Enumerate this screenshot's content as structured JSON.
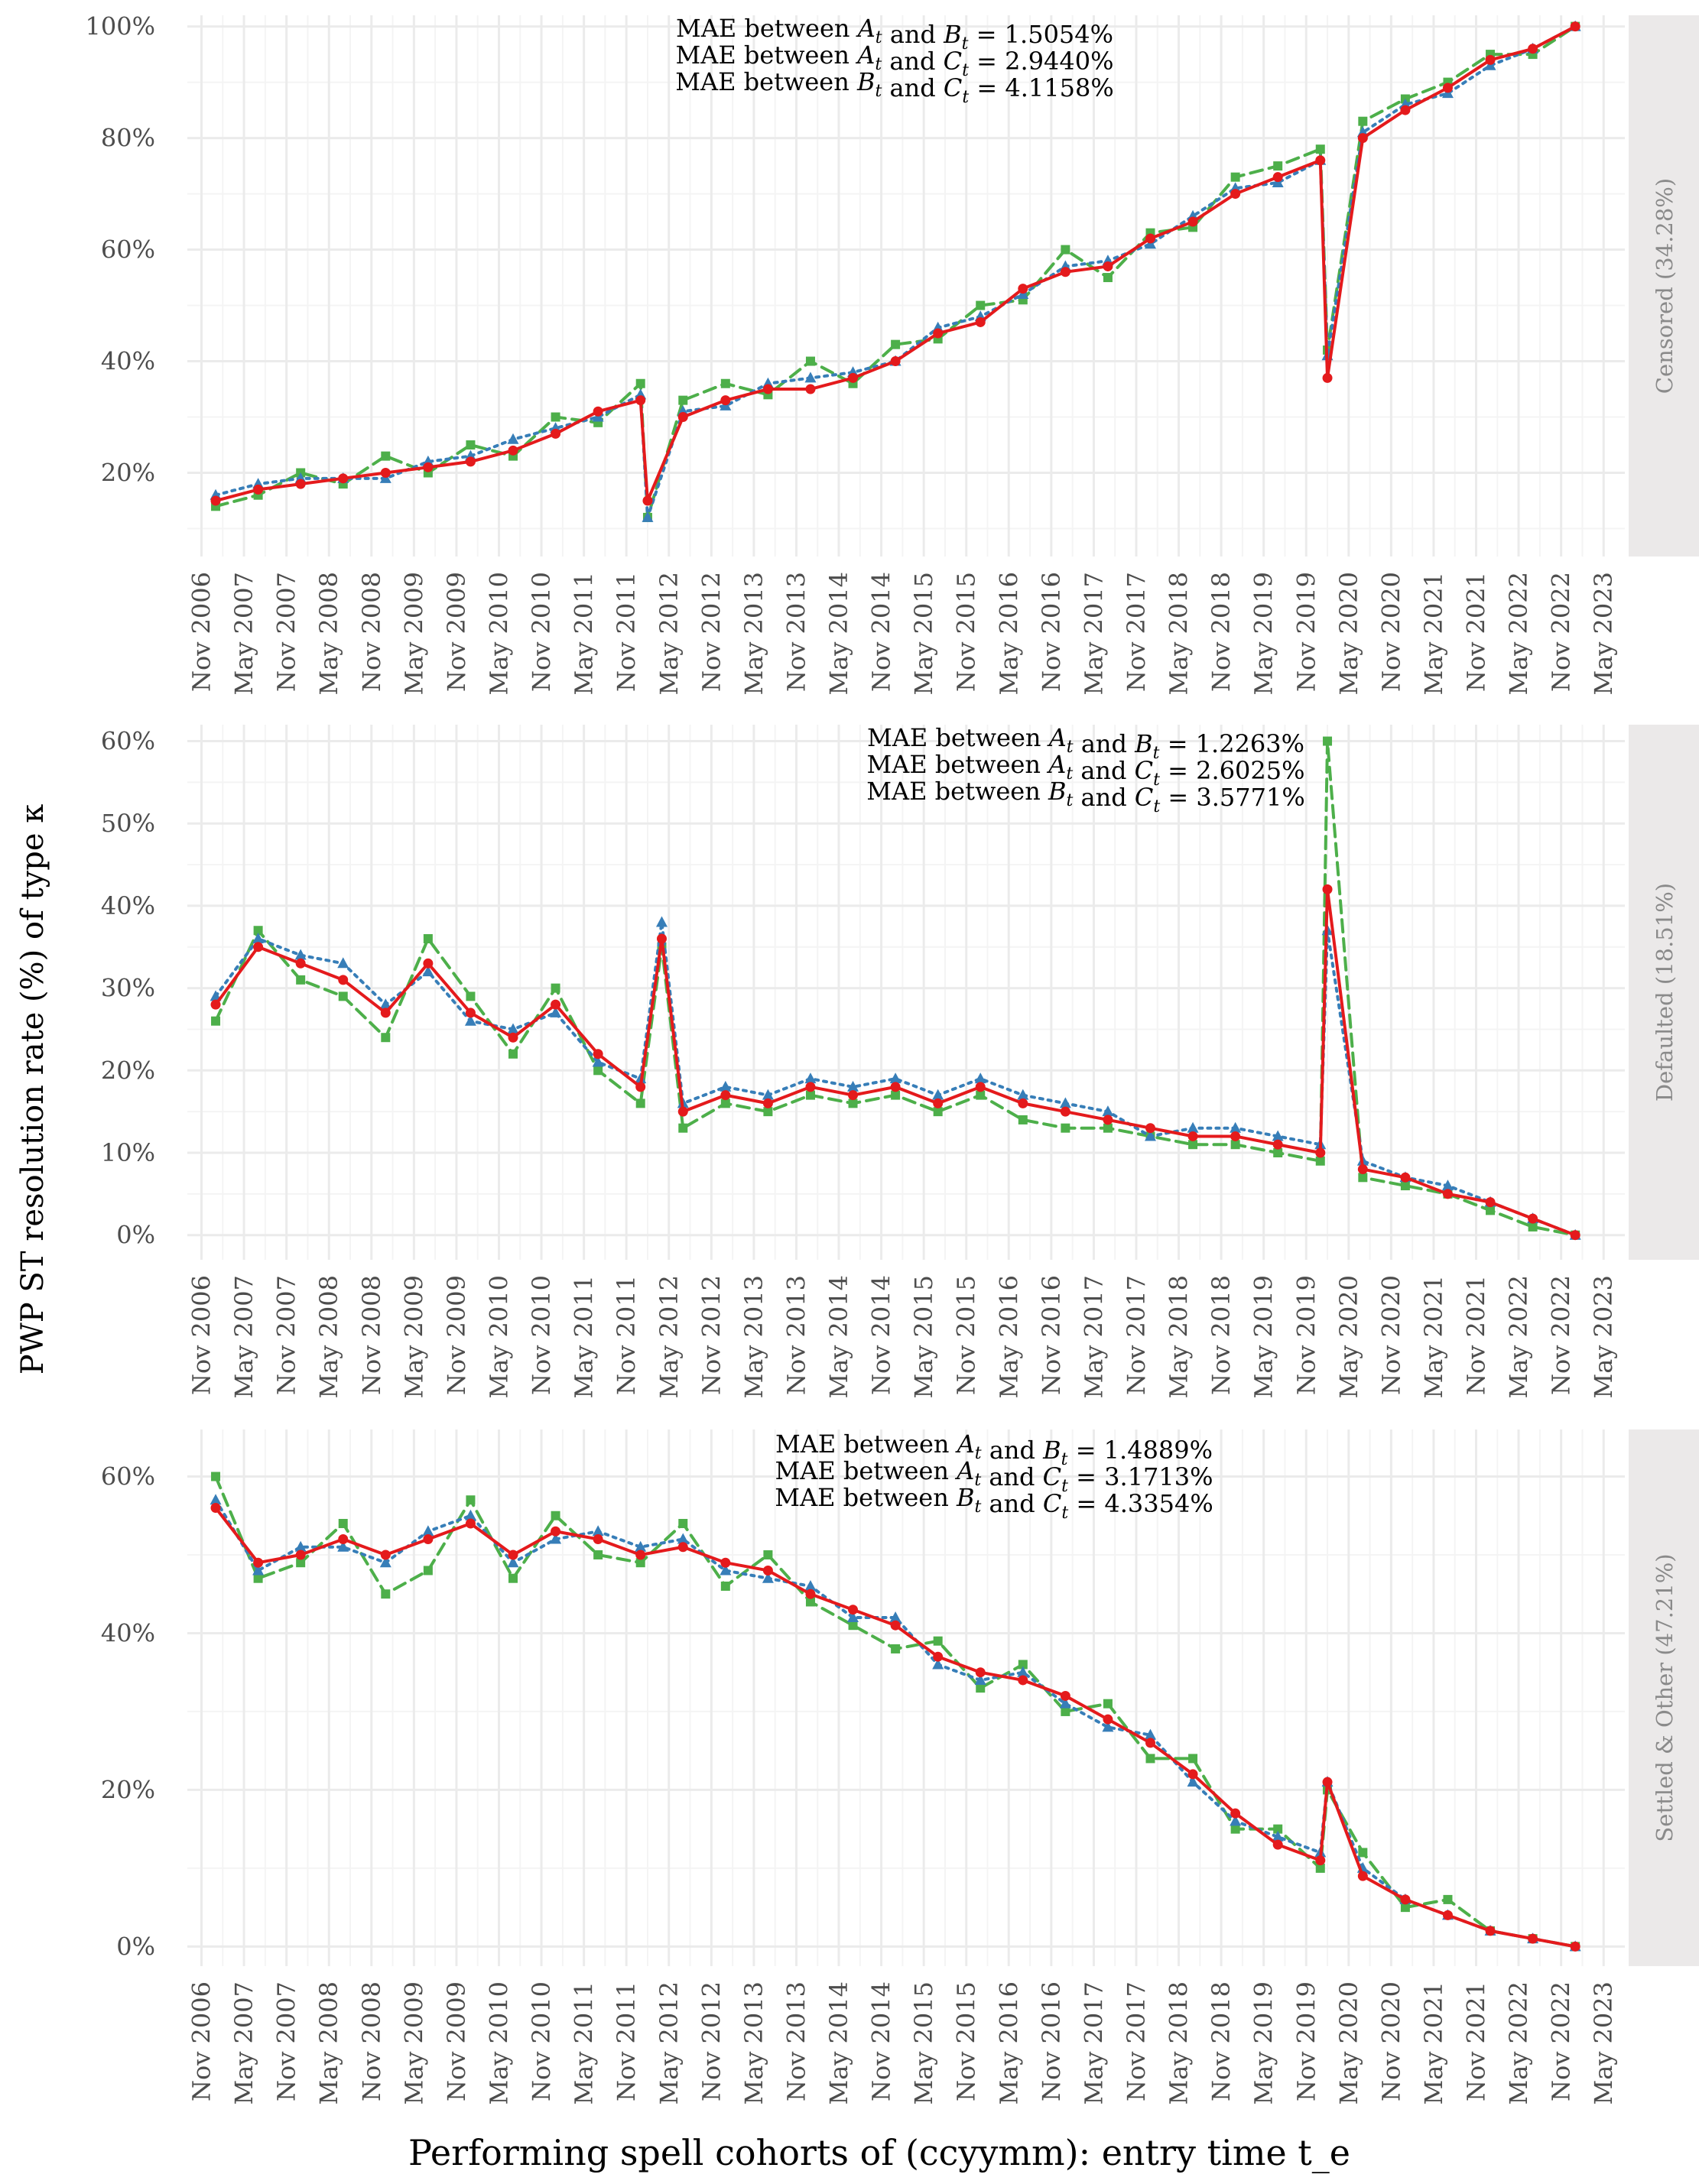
{
  "figure": {
    "ylabel": "PWP ST resolution rate (%) of type κ",
    "xlabel": "Performing spell cohorts of (ccyymm): entry time t_e",
    "colors": {
      "A": "#E41A1C",
      "B": "#377EB8",
      "C": "#4DAF4A",
      "strip_bg": "#EBE9E9",
      "grid_major": "#EBEBEB",
      "grid_minor": "#F4F4F4",
      "text": "#4D4D4D"
    }
  },
  "chart_data": [
    {
      "type": "line",
      "facet": "Censored (34.28%)",
      "ylim": [
        5,
        102
      ],
      "yticks": [
        20,
        40,
        60,
        80,
        100
      ],
      "yticklabels": [
        "20%",
        "40%",
        "60%",
        "80%",
        "100%"
      ],
      "mae": [
        "MAE between A_t and B_t = 1.5054%",
        "MAE between A_t and C_t = 2.9440%",
        "MAE between B_t and C_t = 4.1158%"
      ],
      "series": [
        {
          "key": "A",
          "marker": "circle",
          "dash": "solid",
          "x": [
            "2007-01",
            "2007-07",
            "2008-01",
            "2008-07",
            "2009-01",
            "2009-07",
            "2010-01",
            "2010-07",
            "2011-01",
            "2011-07",
            "2012-01",
            "2012-02",
            "2012-07",
            "2013-01",
            "2013-07",
            "2014-01",
            "2014-07",
            "2015-01",
            "2015-07",
            "2016-01",
            "2016-07",
            "2017-01",
            "2017-07",
            "2018-01",
            "2018-07",
            "2019-01",
            "2019-07",
            "2020-01",
            "2020-02",
            "2020-07",
            "2021-01",
            "2021-07",
            "2022-01",
            "2022-07",
            "2023-01"
          ],
          "values": [
            15,
            17,
            18,
            19,
            20,
            21,
            22,
            24,
            27,
            31,
            33,
            15,
            30,
            33,
            35,
            35,
            37,
            40,
            45,
            47,
            53,
            56,
            57,
            62,
            65,
            70,
            73,
            76,
            37,
            80,
            85,
            89,
            94,
            96,
            100
          ]
        },
        {
          "key": "B",
          "marker": "triangle",
          "dash": "dotted",
          "x": [
            "2007-01",
            "2007-07",
            "2008-01",
            "2008-07",
            "2009-01",
            "2009-07",
            "2010-01",
            "2010-07",
            "2011-01",
            "2011-07",
            "2012-01",
            "2012-02",
            "2012-07",
            "2013-01",
            "2013-07",
            "2014-01",
            "2014-07",
            "2015-01",
            "2015-07",
            "2016-01",
            "2016-07",
            "2017-01",
            "2017-07",
            "2018-01",
            "2018-07",
            "2019-01",
            "2019-07",
            "2020-01",
            "2020-02",
            "2020-07",
            "2021-01",
            "2021-07",
            "2022-01",
            "2022-07",
            "2023-01"
          ],
          "values": [
            16,
            18,
            19,
            19,
            19,
            22,
            23,
            26,
            28,
            30,
            34,
            12,
            31,
            32,
            36,
            37,
            38,
            40,
            46,
            48,
            52,
            57,
            58,
            61,
            66,
            71,
            72,
            76,
            41,
            81,
            86,
            88,
            93,
            96,
            100
          ]
        },
        {
          "key": "C",
          "marker": "square",
          "dash": "dashed",
          "x": [
            "2007-01",
            "2007-07",
            "2008-01",
            "2008-07",
            "2009-01",
            "2009-07",
            "2010-01",
            "2010-07",
            "2011-01",
            "2011-07",
            "2012-01",
            "2012-02",
            "2012-07",
            "2013-01",
            "2013-07",
            "2014-01",
            "2014-07",
            "2015-01",
            "2015-07",
            "2016-01",
            "2016-07",
            "2017-01",
            "2017-07",
            "2018-01",
            "2018-07",
            "2019-01",
            "2019-07",
            "2020-01",
            "2020-02",
            "2020-07",
            "2021-01",
            "2021-07",
            "2022-01",
            "2022-07",
            "2023-01"
          ],
          "values": [
            14,
            16,
            20,
            18,
            23,
            20,
            25,
            23,
            30,
            29,
            36,
            12,
            33,
            36,
            34,
            40,
            36,
            43,
            44,
            50,
            51,
            60,
            55,
            63,
            64,
            73,
            75,
            78,
            42,
            83,
            87,
            90,
            95,
            95,
            100
          ]
        }
      ]
    },
    {
      "type": "line",
      "facet": "Defaulted (18.51%)",
      "ylim": [
        -3,
        62
      ],
      "yticks": [
        0,
        10,
        20,
        30,
        40,
        50,
        60
      ],
      "yticklabels": [
        "0%",
        "10%",
        "20%",
        "30%",
        "40%",
        "50%",
        "60%"
      ],
      "mae": [
        "MAE between A_t and B_t = 1.2263%",
        "MAE between A_t and C_t = 2.6025%",
        "MAE between B_t and C_t = 3.5771%"
      ],
      "series": [
        {
          "key": "A",
          "marker": "circle",
          "dash": "solid",
          "x": [
            "2007-01",
            "2007-07",
            "2008-01",
            "2008-07",
            "2009-01",
            "2009-07",
            "2010-01",
            "2010-07",
            "2011-01",
            "2011-07",
            "2012-01",
            "2012-04",
            "2012-07",
            "2013-01",
            "2013-07",
            "2014-01",
            "2014-07",
            "2015-01",
            "2015-07",
            "2016-01",
            "2016-07",
            "2017-01",
            "2017-07",
            "2018-01",
            "2018-07",
            "2019-01",
            "2019-07",
            "2020-01",
            "2020-02",
            "2020-07",
            "2021-01",
            "2021-07",
            "2022-01",
            "2022-07",
            "2023-01"
          ],
          "values": [
            28,
            35,
            33,
            31,
            27,
            33,
            27,
            24,
            28,
            22,
            18,
            36,
            15,
            17,
            16,
            18,
            17,
            18,
            16,
            18,
            16,
            15,
            14,
            13,
            12,
            12,
            11,
            10,
            42,
            8,
            7,
            5,
            4,
            2,
            0
          ]
        },
        {
          "key": "B",
          "marker": "triangle",
          "dash": "dotted",
          "x": [
            "2007-01",
            "2007-07",
            "2008-01",
            "2008-07",
            "2009-01",
            "2009-07",
            "2010-01",
            "2010-07",
            "2011-01",
            "2011-07",
            "2012-01",
            "2012-04",
            "2012-07",
            "2013-01",
            "2013-07",
            "2014-01",
            "2014-07",
            "2015-01",
            "2015-07",
            "2016-01",
            "2016-07",
            "2017-01",
            "2017-07",
            "2018-01",
            "2018-07",
            "2019-01",
            "2019-07",
            "2020-01",
            "2020-02",
            "2020-07",
            "2021-01",
            "2021-07",
            "2022-01",
            "2022-07",
            "2023-01"
          ],
          "values": [
            29,
            36,
            34,
            33,
            28,
            32,
            26,
            25,
            27,
            21,
            19,
            38,
            16,
            18,
            17,
            19,
            18,
            19,
            17,
            19,
            17,
            16,
            15,
            12,
            13,
            13,
            12,
            11,
            37,
            9,
            7,
            6,
            4,
            2,
            0
          ]
        },
        {
          "key": "C",
          "marker": "square",
          "dash": "dashed",
          "x": [
            "2007-01",
            "2007-07",
            "2008-01",
            "2008-07",
            "2009-01",
            "2009-07",
            "2010-01",
            "2010-07",
            "2011-01",
            "2011-07",
            "2012-01",
            "2012-04",
            "2012-07",
            "2013-01",
            "2013-07",
            "2014-01",
            "2014-07",
            "2015-01",
            "2015-07",
            "2016-01",
            "2016-07",
            "2017-01",
            "2017-07",
            "2018-01",
            "2018-07",
            "2019-01",
            "2019-07",
            "2020-01",
            "2020-02",
            "2020-07",
            "2021-01",
            "2021-07",
            "2022-01",
            "2022-07",
            "2023-01"
          ],
          "values": [
            26,
            37,
            31,
            29,
            24,
            36,
            29,
            22,
            30,
            20,
            16,
            35,
            13,
            16,
            15,
            17,
            16,
            17,
            15,
            17,
            14,
            13,
            13,
            12,
            11,
            11,
            10,
            9,
            60,
            7,
            6,
            5,
            3,
            1,
            0
          ]
        }
      ]
    },
    {
      "type": "line",
      "facet": "Settled & Other (47.21%)",
      "ylim": [
        -2.5,
        66
      ],
      "yticks": [
        0,
        20,
        40,
        60
      ],
      "yticklabels": [
        "0%",
        "20%",
        "40%",
        "60%"
      ],
      "mae": [
        "MAE between A_t and B_t = 1.4889%",
        "MAE between A_t and C_t = 3.1713%",
        "MAE between B_t and C_t = 4.3354%"
      ],
      "series": [
        {
          "key": "A",
          "marker": "circle",
          "dash": "solid",
          "x": [
            "2007-01",
            "2007-07",
            "2008-01",
            "2008-07",
            "2009-01",
            "2009-07",
            "2010-01",
            "2010-07",
            "2011-01",
            "2011-07",
            "2012-01",
            "2012-07",
            "2013-01",
            "2013-07",
            "2014-01",
            "2014-07",
            "2015-01",
            "2015-07",
            "2016-01",
            "2016-07",
            "2017-01",
            "2017-07",
            "2018-01",
            "2018-07",
            "2019-01",
            "2019-07",
            "2020-01",
            "2020-02",
            "2020-07",
            "2021-01",
            "2021-07",
            "2022-01",
            "2022-07",
            "2023-01"
          ],
          "values": [
            56,
            49,
            50,
            52,
            50,
            52,
            54,
            50,
            53,
            52,
            50,
            51,
            49,
            48,
            45,
            43,
            41,
            37,
            35,
            34,
            32,
            29,
            26,
            22,
            17,
            13,
            11,
            21,
            9,
            6,
            4,
            2,
            1,
            0
          ]
        },
        {
          "key": "B",
          "marker": "triangle",
          "dash": "dotted",
          "x": [
            "2007-01",
            "2007-07",
            "2008-01",
            "2008-07",
            "2009-01",
            "2009-07",
            "2010-01",
            "2010-07",
            "2011-01",
            "2011-07",
            "2012-01",
            "2012-07",
            "2013-01",
            "2013-07",
            "2014-01",
            "2014-07",
            "2015-01",
            "2015-07",
            "2016-01",
            "2016-07",
            "2017-01",
            "2017-07",
            "2018-01",
            "2018-07",
            "2019-01",
            "2019-07",
            "2020-01",
            "2020-02",
            "2020-07",
            "2021-01",
            "2021-07",
            "2022-01",
            "2022-07",
            "2023-01"
          ],
          "values": [
            57,
            48,
            51,
            51,
            49,
            53,
            55,
            49,
            52,
            53,
            51,
            52,
            48,
            47,
            46,
            42,
            42,
            36,
            34,
            35,
            31,
            28,
            27,
            21,
            16,
            14,
            12,
            21,
            10,
            6,
            4,
            2,
            1,
            0
          ]
        },
        {
          "key": "C",
          "marker": "square",
          "dash": "dashed",
          "x": [
            "2007-01",
            "2007-07",
            "2008-01",
            "2008-07",
            "2009-01",
            "2009-07",
            "2010-01",
            "2010-07",
            "2011-01",
            "2011-07",
            "2012-01",
            "2012-07",
            "2013-01",
            "2013-07",
            "2014-01",
            "2014-07",
            "2015-01",
            "2015-07",
            "2016-01",
            "2016-07",
            "2017-01",
            "2017-07",
            "2018-01",
            "2018-07",
            "2019-01",
            "2019-07",
            "2020-01",
            "2020-02",
            "2020-07",
            "2021-01",
            "2021-07",
            "2022-01",
            "2022-07",
            "2023-01"
          ],
          "values": [
            60,
            47,
            49,
            54,
            45,
            48,
            57,
            47,
            55,
            50,
            49,
            54,
            46,
            50,
            44,
            41,
            38,
            39,
            33,
            36,
            30,
            31,
            24,
            24,
            15,
            15,
            10,
            20,
            12,
            5,
            6,
            2,
            1,
            0
          ]
        }
      ]
    }
  ],
  "x_axis": {
    "ticks": [
      "2006-11",
      "2007-05",
      "2007-11",
      "2008-05",
      "2008-11",
      "2009-05",
      "2009-11",
      "2010-05",
      "2010-11",
      "2011-05",
      "2011-11",
      "2012-05",
      "2012-11",
      "2013-05",
      "2013-11",
      "2014-05",
      "2014-11",
      "2015-05",
      "2015-11",
      "2016-05",
      "2016-11",
      "2017-05",
      "2017-11",
      "2018-05",
      "2018-11",
      "2019-05",
      "2019-11",
      "2020-05",
      "2020-11",
      "2021-05",
      "2021-11",
      "2022-05",
      "2022-11",
      "2023-05"
    ],
    "labels": [
      "Nov 2006",
      "May 2007",
      "Nov 2007",
      "May 2008",
      "Nov 2008",
      "May 2009",
      "Nov 2009",
      "May 2010",
      "Nov 2010",
      "May 2011",
      "Nov 2011",
      "May 2012",
      "Nov 2012",
      "May 2013",
      "Nov 2013",
      "May 2014",
      "Nov 2014",
      "May 2015",
      "Nov 2015",
      "May 2016",
      "Nov 2016",
      "May 2017",
      "Nov 2017",
      "May 2018",
      "Nov 2018",
      "May 2019",
      "Nov 2019",
      "May 2020",
      "Nov 2020",
      "May 2021",
      "Nov 2021",
      "May 2022",
      "Nov 2022",
      "May 2023"
    ],
    "range": [
      "2006-09",
      "2023-08"
    ]
  }
}
